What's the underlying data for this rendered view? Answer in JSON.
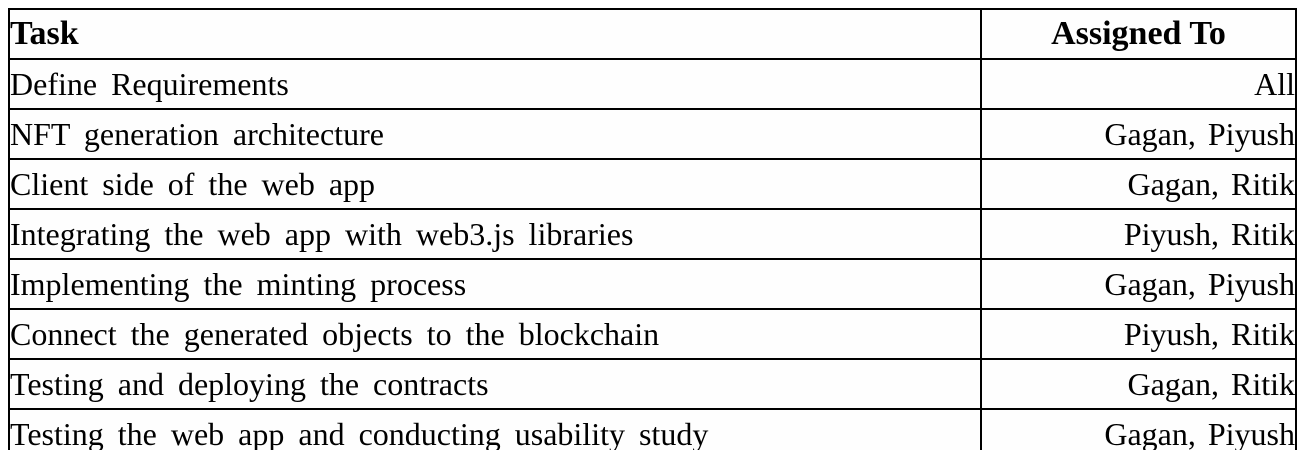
{
  "table": {
    "columns": {
      "task_label": "Task",
      "assigned_label": "Assigned To"
    },
    "rows": [
      {
        "task": "Define Requirements",
        "assigned_to": "All"
      },
      {
        "task": "NFT generation architecture",
        "assigned_to": "Gagan, Piyush"
      },
      {
        "task": "Client side of the web app",
        "assigned_to": "Gagan, Ritik"
      },
      {
        "task": "Integrating the web app with web3.js libraries",
        "assigned_to": "Piyush, Ritik"
      },
      {
        "task": "Implementing the minting process",
        "assigned_to": "Gagan, Piyush"
      },
      {
        "task": "Connect the generated objects to the blockchain",
        "assigned_to": "Piyush, Ritik"
      },
      {
        "task": "Testing and deploying the contracts",
        "assigned_to": "Gagan, Ritik"
      },
      {
        "task": "Testing the web app and conducting usability study",
        "assigned_to": "Gagan, Piyush"
      }
    ],
    "colors": {
      "border": "#000000",
      "text": "#000000",
      "background": "#ffffff"
    }
  }
}
